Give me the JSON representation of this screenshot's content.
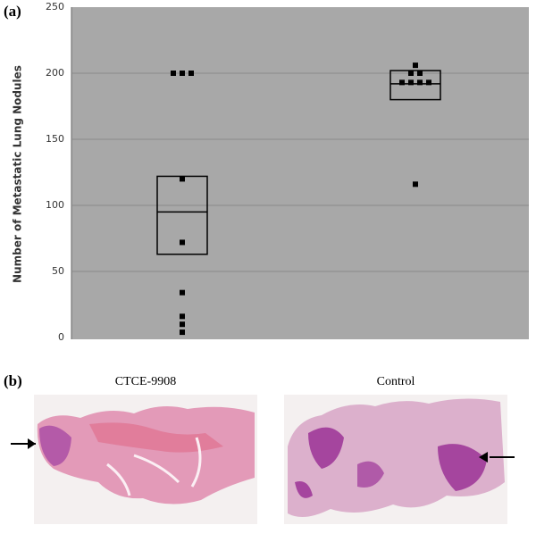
{
  "chart_data": {
    "type": "dotbox",
    "panel_label": "(a)",
    "y_label": "Number of Metastatic Lung Nodules",
    "ylim": [
      0,
      250
    ],
    "yticks": [
      0,
      50,
      100,
      150,
      200,
      250
    ],
    "grid": true,
    "color": "#000000",
    "groups": [
      {
        "values": [
          200,
          200,
          200,
          120,
          72,
          34,
          16,
          10,
          4
        ],
        "box": {
          "low": 63,
          "median": 95,
          "high": 122
        }
      },
      {
        "values": [
          206,
          200,
          200,
          193,
          193,
          193,
          193,
          116
        ],
        "box": {
          "low": 180,
          "median": 192,
          "high": 202
        }
      }
    ]
  },
  "panel_b": {
    "label": "(b)",
    "images": [
      {
        "caption": "CTCE-9908"
      },
      {
        "caption": "Control"
      }
    ]
  }
}
